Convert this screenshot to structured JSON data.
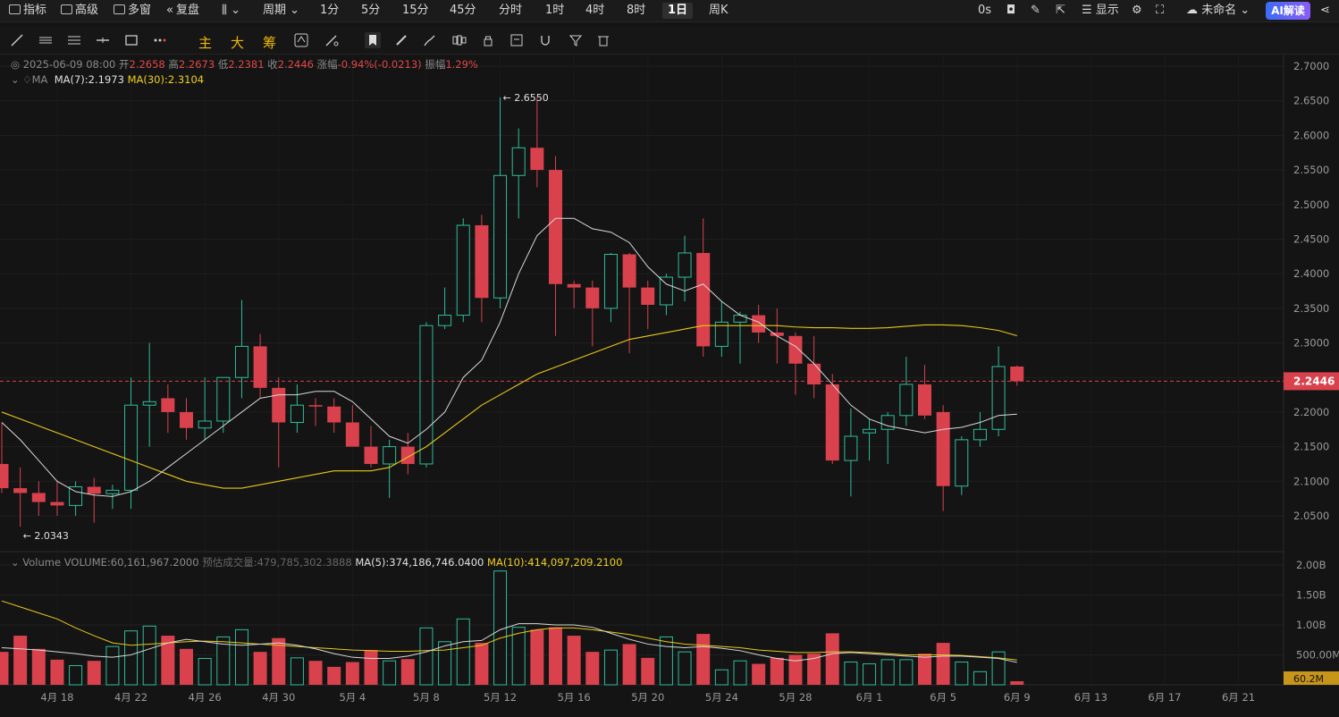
{
  "topbar": {
    "indicators": "指标",
    "advanced": "高级",
    "multi_window": "多窗",
    "replay": "复盘",
    "period": "周期",
    "intervals": [
      "1分",
      "5分",
      "15分",
      "45分",
      "分时",
      "1时",
      "4时",
      "8时",
      "1日",
      "周K"
    ],
    "active_interval": "1日",
    "countdown": "0s",
    "display": "显示",
    "unnamed": "未命名",
    "ai": "AI解读"
  },
  "toolbar": {
    "main": "主",
    "big": "大",
    "chips": "筹"
  },
  "ohlc_line": {
    "date": "2025-06-09 08:00",
    "open_label": "开",
    "open": "2.2658",
    "high_label": "高",
    "high": "2.2673",
    "low_label": "低",
    "low": "2.2381",
    "close_label": "收",
    "close": "2.2446",
    "change_label": "涨幅",
    "change": "-0.94%(-0.0213)",
    "amp_label": "振幅",
    "amp": "1.29%"
  },
  "ma_line": {
    "label": "MA",
    "ma7": "MA(7):2.1973",
    "ma30": "MA(30):2.3104"
  },
  "volume_line": {
    "label": "Volume",
    "volume": "VOLUME:60,161,967.2000",
    "est_label": "预估成交量:",
    "est": "479,785,302.3888",
    "ma5": "MA(5):374,186,746.0400",
    "ma10": "MA(10):414,097,209.2100"
  },
  "price_marks": {
    "high": "← 2.6550",
    "low": "← 2.0343",
    "current": "2.2446",
    "vol_current": "60.2M"
  },
  "colors": {
    "up": "#2ebd9b",
    "down": "#d9414d",
    "ma7": "#d8d8d8",
    "ma30": "#e8c81a",
    "current_tag": "#d9414d"
  },
  "chart_data": {
    "type": "candlestick",
    "y_ticks": [
      "2.7000",
      "2.6500",
      "2.6000",
      "2.5500",
      "2.5000",
      "2.4500",
      "2.4000",
      "2.3500",
      "2.3000",
      "2.2500",
      "2.2000",
      "2.1500",
      "2.1000",
      "2.0500"
    ],
    "vol_ticks": [
      "2.00B",
      "1.50B",
      "1.00B",
      "500.00M"
    ],
    "x_labels": [
      "4月 18",
      "4月 22",
      "4月 26",
      "4月 30",
      "5月 4",
      "5月 8",
      "5月 12",
      "5月 16",
      "5月 20",
      "5月 24",
      "5月 28",
      "6月 1",
      "6月 5",
      "6月 9",
      "6月 13",
      "6月 17",
      "6月 21"
    ],
    "candles": [
      [
        2.125,
        2.184,
        2.083,
        2.09,
        0.55
      ],
      [
        2.09,
        2.12,
        2.0343,
        2.083,
        0.82
      ],
      [
        2.083,
        2.1,
        2.05,
        2.07,
        0.6
      ],
      [
        2.07,
        2.1,
        2.05,
        2.065,
        0.42
      ],
      [
        2.065,
        2.1,
        2.05,
        2.092,
        0.32
      ],
      [
        2.092,
        2.105,
        2.04,
        2.082,
        0.4
      ],
      [
        2.082,
        2.095,
        2.06,
        2.087,
        0.64
      ],
      [
        2.087,
        2.25,
        2.06,
        2.21,
        0.9
      ],
      [
        2.21,
        2.3,
        2.15,
        2.215,
        0.98
      ],
      [
        2.22,
        2.24,
        2.17,
        2.2,
        0.82
      ],
      [
        2.2,
        2.22,
        2.16,
        2.177,
        0.6
      ],
      [
        2.177,
        2.25,
        2.16,
        2.187,
        0.44
      ],
      [
        2.187,
        2.25,
        2.17,
        2.25,
        0.8
      ],
      [
        2.25,
        2.362,
        2.22,
        2.295,
        0.92
      ],
      [
        2.295,
        2.313,
        2.22,
        2.235,
        0.55
      ],
      [
        2.235,
        2.25,
        2.12,
        2.185,
        0.78
      ],
      [
        2.185,
        2.24,
        2.17,
        2.21,
        0.45
      ],
      [
        2.21,
        2.22,
        2.18,
        2.208,
        0.4
      ],
      [
        2.208,
        2.22,
        2.17,
        2.185,
        0.3
      ],
      [
        2.185,
        2.21,
        2.15,
        2.15,
        0.38
      ],
      [
        2.15,
        2.18,
        2.12,
        2.125,
        0.58
      ],
      [
        2.125,
        2.16,
        2.076,
        2.15,
        0.4
      ],
      [
        2.15,
        2.17,
        2.11,
        2.125,
        0.43
      ],
      [
        2.125,
        2.33,
        2.12,
        2.325,
        0.95
      ],
      [
        2.325,
        2.38,
        2.32,
        2.34,
        0.72
      ],
      [
        2.34,
        2.48,
        2.33,
        2.47,
        1.1
      ],
      [
        2.47,
        2.485,
        2.33,
        2.365,
        0.7
      ],
      [
        2.365,
        2.655,
        2.35,
        2.542,
        1.9
      ],
      [
        2.542,
        2.61,
        2.48,
        2.582,
        0.96
      ],
      [
        2.582,
        2.655,
        2.525,
        2.55,
        0.92
      ],
      [
        2.55,
        2.57,
        2.31,
        2.385,
        0.96
      ],
      [
        2.385,
        2.39,
        2.35,
        2.38,
        0.82
      ],
      [
        2.38,
        2.39,
        2.295,
        2.35,
        0.55
      ],
      [
        2.35,
        2.43,
        2.33,
        2.428,
        0.58
      ],
      [
        2.428,
        2.43,
        2.285,
        2.38,
        0.68
      ],
      [
        2.38,
        2.39,
        2.32,
        2.355,
        0.45
      ],
      [
        2.355,
        2.4,
        2.34,
        2.395,
        0.8
      ],
      [
        2.395,
        2.455,
        2.36,
        2.43,
        0.55
      ],
      [
        2.43,
        2.48,
        2.28,
        2.295,
        0.85
      ],
      [
        2.295,
        2.36,
        2.28,
        2.33,
        0.25
      ],
      [
        2.33,
        2.345,
        2.27,
        2.34,
        0.4
      ],
      [
        2.34,
        2.355,
        2.3,
        2.315,
        0.35
      ],
      [
        2.315,
        2.35,
        2.27,
        2.31,
        0.45
      ],
      [
        2.31,
        2.315,
        2.225,
        2.27,
        0.5
      ],
      [
        2.27,
        2.31,
        2.22,
        2.24,
        0.52
      ],
      [
        2.24,
        2.255,
        2.125,
        2.13,
        0.86
      ],
      [
        2.13,
        2.205,
        2.078,
        2.165,
        0.38
      ],
      [
        2.17,
        2.19,
        2.13,
        2.175,
        0.35
      ],
      [
        2.175,
        2.2,
        2.125,
        2.195,
        0.42
      ],
      [
        2.195,
        2.28,
        2.18,
        2.24,
        0.42
      ],
      [
        2.24,
        2.268,
        2.19,
        2.195,
        0.52
      ],
      [
        2.2,
        2.21,
        2.057,
        2.093,
        0.7
      ],
      [
        2.093,
        2.165,
        2.08,
        2.16,
        0.38
      ],
      [
        2.16,
        2.2,
        2.15,
        2.175,
        0.22
      ],
      [
        2.175,
        2.295,
        2.165,
        2.2658,
        0.55
      ],
      [
        2.2658,
        2.2673,
        2.2381,
        2.2446,
        0.06
      ]
    ],
    "ma7": [
      2.185,
      2.16,
      2.13,
      2.1,
      2.085,
      2.08,
      2.078,
      2.085,
      2.1,
      2.12,
      2.14,
      2.16,
      2.18,
      2.2,
      2.22,
      2.225,
      2.225,
      2.23,
      2.23,
      2.215,
      2.19,
      2.165,
      2.155,
      2.175,
      2.2,
      2.25,
      2.275,
      2.33,
      2.4,
      2.455,
      2.48,
      2.48,
      2.465,
      2.46,
      2.445,
      2.41,
      2.385,
      2.375,
      2.385,
      2.36,
      2.34,
      2.33,
      2.31,
      2.295,
      2.27,
      2.24,
      2.21,
      2.19,
      2.18,
      2.175,
      2.17,
      2.175,
      2.178,
      2.185,
      2.195,
      2.197
    ],
    "ma30": [
      2.2,
      2.19,
      2.18,
      2.17,
      2.16,
      2.15,
      2.14,
      2.13,
      2.12,
      2.11,
      2.1,
      2.095,
      2.09,
      2.09,
      2.095,
      2.1,
      2.105,
      2.11,
      2.115,
      2.115,
      2.115,
      2.12,
      2.135,
      2.15,
      2.17,
      2.19,
      2.21,
      2.225,
      2.24,
      2.255,
      2.265,
      2.275,
      2.285,
      2.295,
      2.305,
      2.31,
      2.315,
      2.32,
      2.325,
      2.325,
      2.325,
      2.325,
      2.325,
      2.323,
      2.322,
      2.322,
      2.321,
      2.321,
      2.322,
      2.324,
      2.326,
      2.326,
      2.325,
      2.322,
      2.318,
      2.3104
    ],
    "vol_ma5": [
      0.62,
      0.6,
      0.58,
      0.55,
      0.52,
      0.48,
      0.46,
      0.5,
      0.6,
      0.7,
      0.76,
      0.72,
      0.68,
      0.66,
      0.68,
      0.7,
      0.66,
      0.6,
      0.52,
      0.46,
      0.44,
      0.44,
      0.48,
      0.55,
      0.65,
      0.72,
      0.74,
      0.92,
      1.02,
      1.02,
      1.0,
      1.0,
      0.96,
      0.86,
      0.76,
      0.68,
      0.64,
      0.62,
      0.64,
      0.61,
      0.57,
      0.5,
      0.44,
      0.4,
      0.44,
      0.52,
      0.54,
      0.52,
      0.5,
      0.48,
      0.46,
      0.48,
      0.48,
      0.46,
      0.44,
      0.374
    ],
    "vol_ma10": [
      1.4,
      1.3,
      1.2,
      1.1,
      0.95,
      0.82,
      0.7,
      0.66,
      0.68,
      0.7,
      0.72,
      0.73,
      0.72,
      0.7,
      0.68,
      0.66,
      0.64,
      0.62,
      0.6,
      0.58,
      0.57,
      0.56,
      0.56,
      0.57,
      0.58,
      0.62,
      0.66,
      0.78,
      0.86,
      0.92,
      0.95,
      0.95,
      0.92,
      0.88,
      0.84,
      0.78,
      0.72,
      0.68,
      0.66,
      0.64,
      0.62,
      0.58,
      0.56,
      0.54,
      0.54,
      0.55,
      0.55,
      0.54,
      0.52,
      0.5,
      0.5,
      0.5,
      0.49,
      0.47,
      0.45,
      0.414
    ]
  }
}
